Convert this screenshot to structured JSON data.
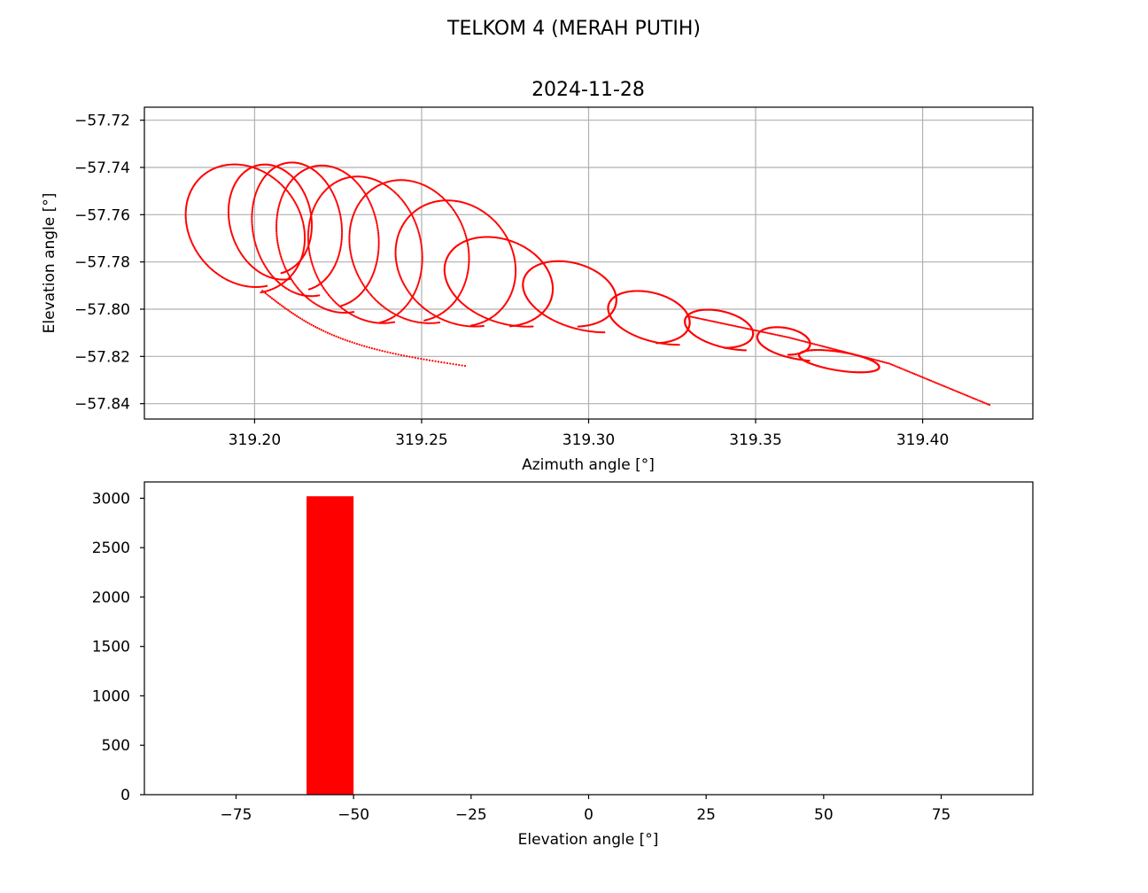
{
  "figure": {
    "suptitle": "TELKOM 4 (MERAH PUTIH)"
  },
  "colors": {
    "series": "#ff0000",
    "grid": "#b0b0b0",
    "axes": "#000000"
  },
  "chart_data": [
    {
      "type": "scatter",
      "title": "2024-11-28",
      "xlabel": "Azimuth angle [°]",
      "ylabel": "Elevation angle [°]",
      "xlim": [
        319.167,
        319.433
      ],
      "ylim": [
        -57.8465,
        -57.7145
      ],
      "xticks": [
        319.2,
        319.25,
        319.3,
        319.35,
        319.4
      ],
      "xtick_labels": [
        "319.20",
        "319.25",
        "319.30",
        "319.35",
        "319.40"
      ],
      "yticks": [
        -57.72,
        -57.74,
        -57.76,
        -57.78,
        -57.8,
        -57.82,
        -57.84
      ],
      "ytick_labels": [
        "−57.72",
        "−57.74",
        "−57.76",
        "−57.78",
        "−57.80",
        "−57.82",
        "−57.84"
      ],
      "grid": true,
      "track": {
        "description_of_shape": "looping spiral track drifting in azimuth",
        "start": [
          319.263,
          -57.824
        ],
        "end": [
          319.42,
          -57.8405
        ],
        "loops": [
          {
            "center": [
              319.196,
              -57.766
            ],
            "rx": 0.019,
            "ry": 0.027
          },
          {
            "center": [
              319.204,
              -57.762
            ],
            "rx": 0.013,
            "ry": 0.023
          },
          {
            "center": [
              319.212,
              -57.765
            ],
            "rx": 0.014,
            "ry": 0.027
          },
          {
            "center": [
              319.221,
              -57.769
            ],
            "rx": 0.016,
            "ry": 0.03
          },
          {
            "center": [
              319.232,
              -57.775
            ],
            "rx": 0.018,
            "ry": 0.031
          },
          {
            "center": [
              319.245,
              -57.775
            ],
            "rx": 0.019,
            "ry": 0.03
          },
          {
            "center": [
              319.259,
              -57.78
            ],
            "rx": 0.019,
            "ry": 0.027
          },
          {
            "center": [
              319.271,
              -57.788
            ],
            "rx": 0.018,
            "ry": 0.019
          },
          {
            "center": [
              319.292,
              -57.793
            ],
            "rx": 0.016,
            "ry": 0.014
          },
          {
            "center": [
              319.316,
              -57.803
            ],
            "rx": 0.014,
            "ry": 0.011
          },
          {
            "center": [
              319.337,
              -57.808
            ],
            "rx": 0.012,
            "ry": 0.008
          },
          {
            "center": [
              319.357,
              -57.813
            ],
            "rx": 0.009,
            "ry": 0.006
          },
          {
            "center": [
              319.375,
              -57.822
            ],
            "rx": 0.012,
            "ry": 0.004
          }
        ],
        "tail": [
          [
            319.33,
            -57.803
          ],
          [
            319.36,
            -57.812
          ],
          [
            319.39,
            -57.823
          ],
          [
            319.42,
            -57.8405
          ]
        ]
      }
    },
    {
      "type": "bar",
      "title": "",
      "xlabel": "Elevation angle [°]",
      "ylabel": "",
      "xlim": [
        -94.5,
        94.5
      ],
      "ylim": [
        0,
        3165
      ],
      "xticks": [
        -75,
        -50,
        -25,
        0,
        25,
        50,
        75
      ],
      "xtick_labels": [
        "−75",
        "−50",
        "−25",
        "0",
        "25",
        "50",
        "75"
      ],
      "yticks": [
        0,
        500,
        1000,
        1500,
        2000,
        2500,
        3000
      ],
      "ytick_labels": [
        "0",
        "500",
        "1000",
        "1500",
        "2000",
        "2500",
        "3000"
      ],
      "bins": [
        {
          "x0": -60,
          "x1": -50,
          "value": 3020
        }
      ]
    }
  ]
}
